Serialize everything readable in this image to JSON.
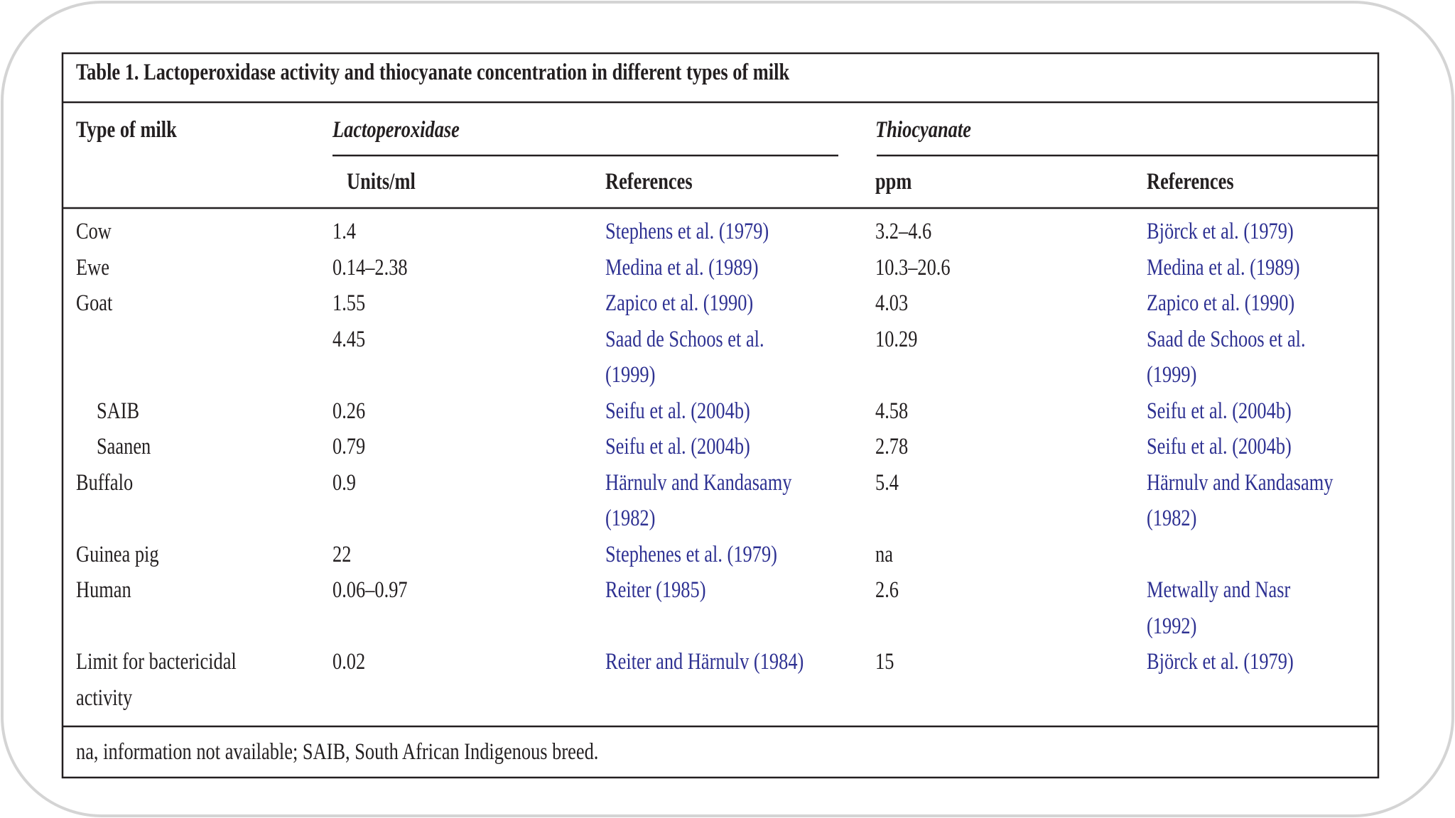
{
  "table": {
    "title": "Table 1. Lactoperoxidase activity and thiocyanate concentration in different types of milk",
    "group_headers": [
      "Type of milk",
      "Lactoperoxidase",
      "Thiocyanate"
    ],
    "sub_headers": [
      "Units/ml",
      "References",
      "ppm",
      "References"
    ],
    "rows": [
      {
        "cells": [
          "Cow",
          "1.4",
          "Stephens et al. (1979)",
          "3.2–4.6",
          "Björck et al. (1979)"
        ]
      },
      {
        "cells": [
          "Ewe",
          "0.14–2.38",
          "Medina et al. (1989)",
          "10.3–20.6",
          "Medina et al. (1989)"
        ]
      },
      {
        "cells": [
          "Goat",
          "1.55",
          "Zapico et al. (1990)",
          "4.03",
          "Zapico et al. (1990)"
        ]
      },
      {
        "cells": [
          null,
          "4.45",
          [
            "Saad de Schoos et al.",
            "(1999)"
          ],
          "10.29",
          [
            "Saad de Schoos et al.",
            "(1999)"
          ]
        ]
      },
      {
        "cells": [
          "SAIB",
          "0.26",
          "Seifu et al. (2004b)",
          "4.58",
          "Seifu et al. (2004b)"
        ],
        "indent": true
      },
      {
        "cells": [
          "Saanen",
          "0.79",
          "Seifu et al. (2004b)",
          "2.78",
          "Seifu et al. (2004b)"
        ],
        "indent": true
      },
      {
        "cells": [
          "Buffalo",
          "0.9",
          [
            "Härnulv and Kandasamy",
            "(1982)"
          ],
          "5.4",
          [
            "Härnulv and Kandasamy",
            "(1982)"
          ]
        ]
      },
      {
        "cells": [
          "Guinea pig",
          "22",
          "Stephenes et al. (1979)",
          "na",
          null
        ]
      },
      {
        "cells": [
          "Human",
          "0.06–0.97",
          "Reiter (1985)",
          "2.6",
          [
            "Metwally and Nasr",
            "(1992)"
          ]
        ]
      },
      {
        "cells": [
          [
            "Limit for bactericidal",
            "activity"
          ],
          "0.02",
          "Reiter and Härnulv (1984)",
          "15",
          "Björck et al. (1979)"
        ]
      }
    ],
    "footnote": "na, information not available; SAIB, South African Indigenous breed."
  }
}
